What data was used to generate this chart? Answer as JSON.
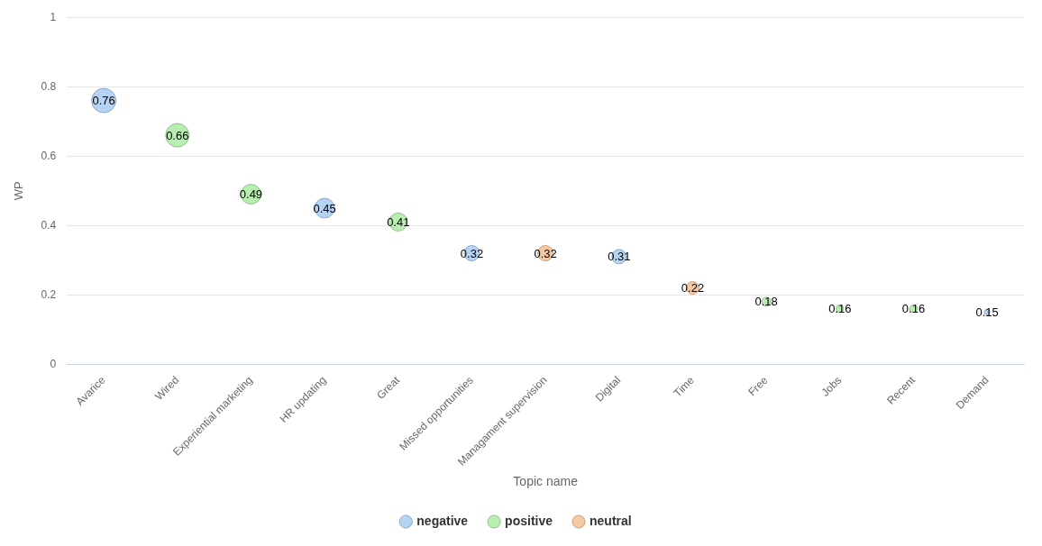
{
  "chart_data": {
    "type": "bubble",
    "xlabel": "Topic name",
    "ylabel": "WP",
    "categories": [
      "Avarice",
      "Wired",
      "Experiential marketing",
      "HR updating",
      "Great",
      "Missed opportunities",
      "Managament supervision",
      "Digital",
      "Time",
      "Free",
      "Jobs",
      "Recent",
      "Demand"
    ],
    "series": [
      {
        "name": "negative",
        "color": "#b5d3f3",
        "values": [
          0.76,
          null,
          null,
          0.45,
          null,
          0.32,
          null,
          0.31,
          null,
          null,
          null,
          null,
          0.15
        ],
        "sizes": [
          1,
          null,
          null,
          0.66,
          null,
          0.4,
          null,
          0.35,
          null,
          null,
          null,
          null,
          0.05
        ]
      },
      {
        "name": "positive",
        "color": "#b8eeb0",
        "values": [
          null,
          0.66,
          0.49,
          null,
          0.41,
          null,
          null,
          null,
          null,
          0.18,
          0.16,
          0.16,
          null
        ],
        "sizes": [
          null,
          0.93,
          0.66,
          null,
          0.55,
          null,
          null,
          null,
          null,
          0.14,
          0.09,
          0.09,
          null
        ]
      },
      {
        "name": "neutral",
        "color": "#f6c9a2",
        "values": [
          null,
          null,
          null,
          null,
          null,
          null,
          0.32,
          null,
          0.22,
          null,
          null,
          null,
          null
        ],
        "sizes": [
          null,
          null,
          null,
          null,
          null,
          null,
          0.4,
          null,
          0.27,
          null,
          null,
          null,
          null
        ]
      }
    ],
    "ylim": [
      0,
      1
    ],
    "yticks": [
      0,
      0.2,
      0.4,
      0.6,
      0.8,
      1
    ],
    "grid": "y",
    "legend": "bottom",
    "data_labels": true
  }
}
